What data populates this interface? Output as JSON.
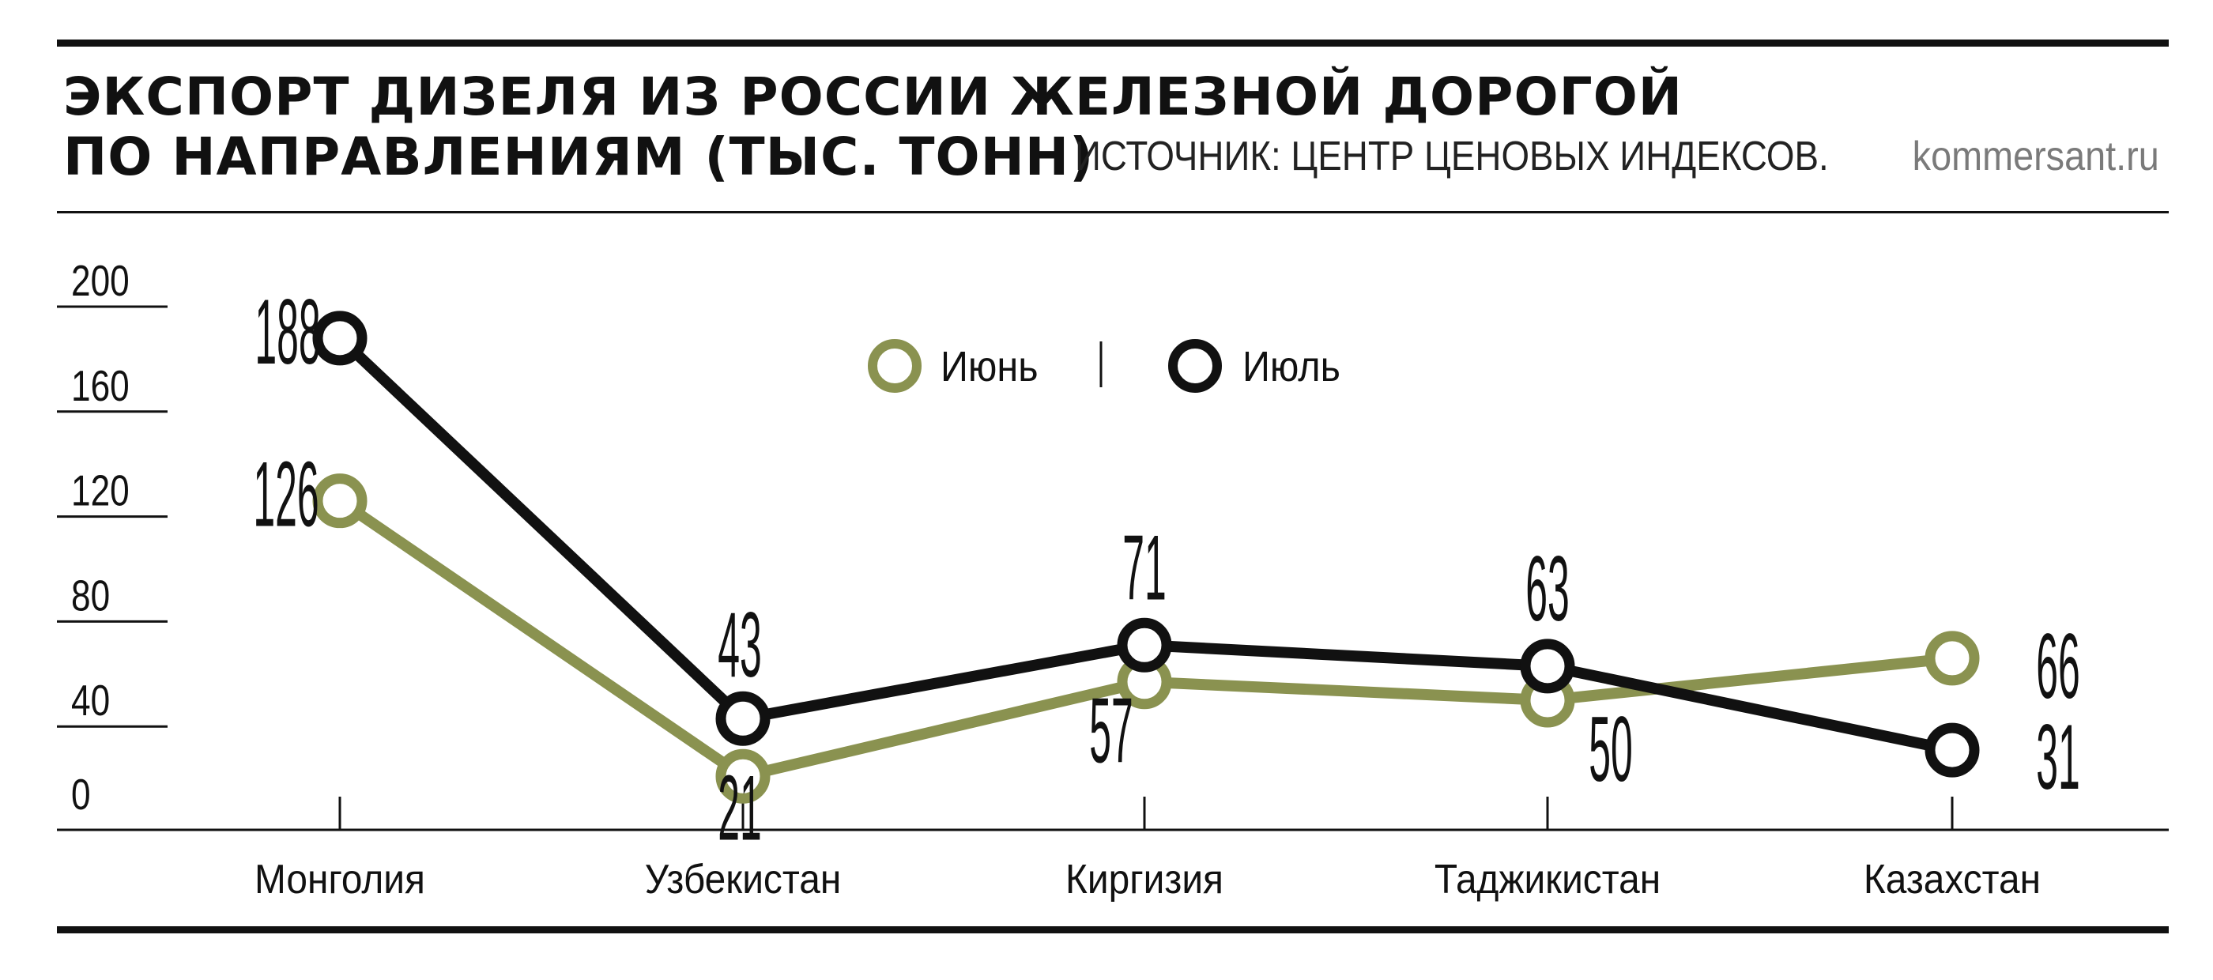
{
  "header": {
    "title_line1": "ЭКСПОРТ ДИЗЕЛЯ ИЗ РОССИИ ЖЕЛЕЗНОЙ ДОРОГОЙ",
    "title_line2": "ПО НАПРАВЛЕНИЯМ (ТЫС. ТОНН)",
    "source": "ИСТОЧНИК: ЦЕНТР ЦЕНОВЫХ ИНДЕКСОВ.",
    "site": "kommersant.ru"
  },
  "colors": {
    "june": "#8a9250",
    "july": "#111111",
    "text": "#111111"
  },
  "legend": {
    "june_label": "Июнь",
    "separator": "|",
    "july_label": "Июль"
  },
  "chart_data": {
    "type": "line",
    "title": "ЭКСПОРТ ДИЗЕЛЯ ИЗ РОССИИ ЖЕЛЕЗНОЙ ДОРОГОЙ ПО НАПРАВЛЕНИЯМ (ТЫС. ТОНН)",
    "categories": [
      "Монголия",
      "Узбекистан",
      "Киргизия",
      "Таджикистан",
      "Казахстан"
    ],
    "series": [
      {
        "name": "Июнь",
        "values": [
          126,
          21,
          57,
          50,
          66
        ],
        "color": "#8a9250"
      },
      {
        "name": "Июль",
        "values": [
          188,
          43,
          71,
          63,
          31
        ],
        "color": "#111111"
      }
    ],
    "y_ticks": [
      0,
      40,
      80,
      120,
      160,
      200
    ],
    "ylim": [
      0,
      200
    ],
    "grid": false,
    "legend_position": "top-center"
  }
}
